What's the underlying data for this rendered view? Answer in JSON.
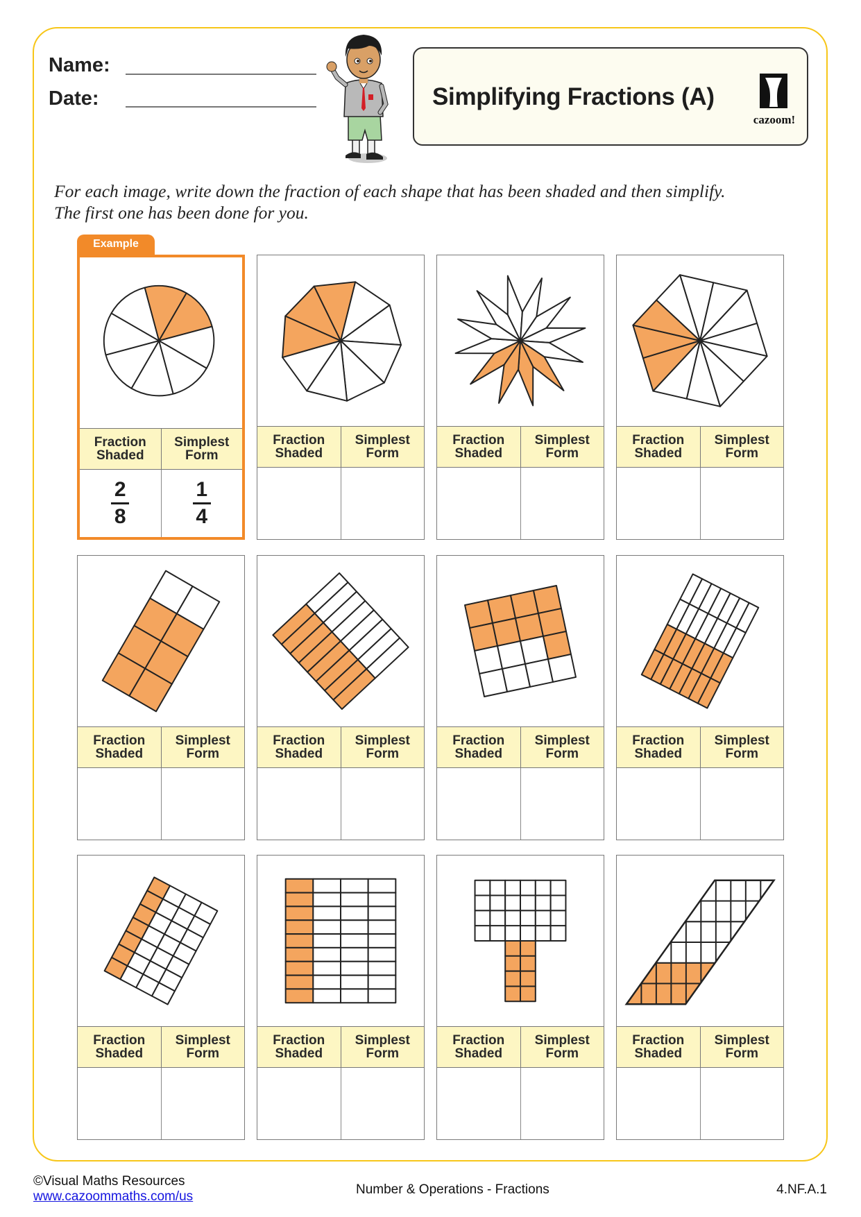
{
  "header": {
    "name_label": "Name:",
    "date_label": "Date:",
    "title": "Simplifying Fractions (A)",
    "logo_text": "cazoom!"
  },
  "instructions": {
    "line1": "For each image, write down the fraction of each shape that has been shaded and then simplify.",
    "line2": "The first one has been done for you."
  },
  "example_tab": "Example",
  "column_labels": {
    "fraction_shaded": [
      "Fraction",
      "Shaded"
    ],
    "simplest_form": [
      "Simplest",
      "Form"
    ]
  },
  "colors": {
    "shade": "#f4a55e",
    "example_border": "#f28a29",
    "header_band": "#fdf6c3",
    "frame": "#f7c619"
  },
  "cells": [
    {
      "shape": "circle",
      "parts": 8,
      "shaded": [
        0,
        1
      ],
      "example": true,
      "answer": {
        "fraction_shaded": {
          "numerator": "2",
          "denominator": "8"
        },
        "simplest_form": {
          "numerator": "1",
          "denominator": "4"
        }
      }
    },
    {
      "shape": "nonagon-sectors",
      "parts": 9,
      "shaded": [
        6,
        7,
        8
      ]
    },
    {
      "shape": "star",
      "parts": 12,
      "shaded": [
        5,
        6,
        7,
        8
      ]
    },
    {
      "shape": "hexagon-triangles",
      "parts": 12,
      "shaded": [
        8,
        9,
        10
      ]
    },
    {
      "shape": "grid",
      "cols": 2,
      "rows": 4,
      "shaded_rows": [
        1,
        2,
        3
      ]
    },
    {
      "shape": "grid",
      "cols": 2,
      "rows": 8,
      "shaded_cols": [
        0
      ]
    },
    {
      "shape": "grid",
      "cols": 4,
      "rows": 4,
      "shaded_rows": [
        0,
        1
      ],
      "shaded_cells": [
        [
          2,
          3
        ]
      ]
    },
    {
      "shape": "grid",
      "cols": 7,
      "rows": 4,
      "shaded_rows": [
        2,
        3
      ]
    },
    {
      "shape": "grid",
      "cols": 4,
      "rows": 7,
      "shaded_cols": [
        0
      ]
    },
    {
      "shape": "grid",
      "cols": 4,
      "rows": 9,
      "shaded_cols": [
        0
      ]
    },
    {
      "shape": "t-shape",
      "top_cols": 6,
      "top_rows": 4,
      "stem_cols": 2,
      "stem_rows": 4,
      "shaded": "stem"
    },
    {
      "shape": "parallelogram",
      "cols": 4,
      "rows": 6,
      "shaded_rows_from_bottom": 2
    }
  ],
  "footer": {
    "copyright": "©Visual Maths Resources",
    "link": "www.cazoommaths.com/us",
    "topic": "Number & Operations - Fractions",
    "standard": "4.NF.A.1"
  }
}
